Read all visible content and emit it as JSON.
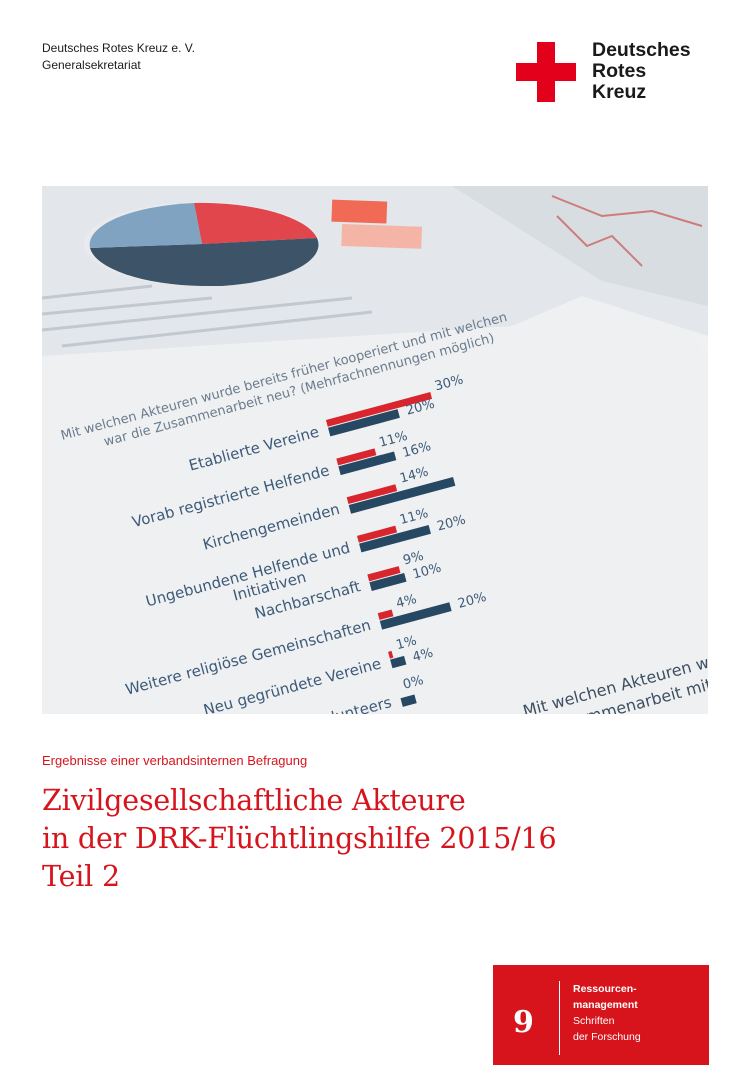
{
  "header": {
    "org_line1": "Deutsches Rotes Kreuz e. V.",
    "org_line2": "Generalsekretariat",
    "logo_line1": "Deutsches",
    "logo_line2": "Rotes",
    "logo_line3": "Kreuz"
  },
  "cover_image": {
    "question_line1": "Mit welchen Akteuren wurde bereits früher kooperiert und mit welchen",
    "question_line2": "war die Zusammenarbeit neu? (Mehrfachnennungen möglich)",
    "footer_text_line1": "Mit welchen Akteuren wurde bere",
    "footer_text_line2": "Zusammenarbeit mit die",
    "bars": [
      {
        "label": "Etablierte Vereine",
        "label2": "",
        "red_pct": "30%",
        "blue_pct": "20%",
        "red": 0.3,
        "blue": 0.2
      },
      {
        "label": "Vorab registrierte Helfende",
        "label2": "",
        "red_pct": "11%",
        "blue_pct": "16%",
        "red": 0.11,
        "blue": 0.16
      },
      {
        "label": "Kirchengemeinden",
        "label2": "",
        "red_pct": "14%",
        "blue_pct": "",
        "red": 0.14,
        "blue": 0.3
      },
      {
        "label": "Ungebundene Helfende und",
        "label2": "Initiativen",
        "red_pct": "11%",
        "blue_pct": "20%",
        "red": 0.11,
        "blue": 0.2
      },
      {
        "label": "Nachbarschaft",
        "label2": "",
        "red_pct": "9%",
        "blue_pct": "10%",
        "red": 0.09,
        "blue": 0.1
      },
      {
        "label": "Weitere religiöse Gemeinschaften",
        "label2": "",
        "red_pct": "4%",
        "blue_pct": "20%",
        "red": 0.04,
        "blue": 0.2
      },
      {
        "label": "Neu gegründete Vereine",
        "label2": "",
        "red_pct": "1%",
        "blue_pct": "4%",
        "red": 0.01,
        "blue": 0.04
      },
      {
        "label": "Digital Volunteers",
        "label2": "",
        "red_pct": "0%",
        "blue_pct": "",
        "red": 0.0,
        "blue": 0.04
      }
    ],
    "colors": {
      "red": "#d9262e",
      "blue": "#274862"
    }
  },
  "subtitle": "Ergebnisse einer verbandsinternen Befragung",
  "title": {
    "line1": "Zivilgesellschaftliche Akteure",
    "line2": "in der DRK-Flüchtlingshilfe 2015/16",
    "line3": "Teil 2"
  },
  "series": {
    "number": "9",
    "line1": "Ressourcen-",
    "line2": "management",
    "line3": "Schriften",
    "line4": "der Forschung"
  },
  "colors": {
    "drk_red": "#d7131b",
    "text": "#1b1b1b"
  }
}
